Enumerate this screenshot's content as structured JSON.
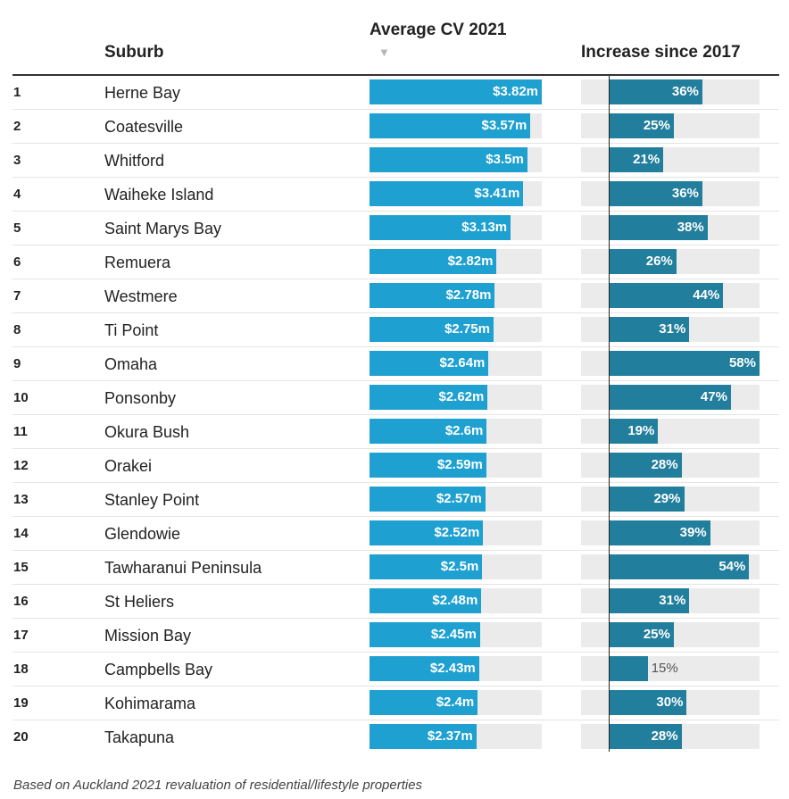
{
  "chart_data": {
    "type": "table",
    "columns": {
      "suburb": "Suburb",
      "cv": "Average CV 2021",
      "increase": "Increase since 2017"
    },
    "sort_indicator": "▼",
    "cv_axis_max": 3.82,
    "increase_axis_max": 58,
    "rows": [
      {
        "rank": "1",
        "suburb": "Herne Bay",
        "cv": 3.82,
        "cv_label": "$3.82m",
        "increase": 36,
        "increase_label": "36%"
      },
      {
        "rank": "2",
        "suburb": "Coatesville",
        "cv": 3.57,
        "cv_label": "$3.57m",
        "increase": 25,
        "increase_label": "25%"
      },
      {
        "rank": "3",
        "suburb": "Whitford",
        "cv": 3.5,
        "cv_label": "$3.5m",
        "increase": 21,
        "increase_label": "21%"
      },
      {
        "rank": "4",
        "suburb": "Waiheke Island",
        "cv": 3.41,
        "cv_label": "$3.41m",
        "increase": 36,
        "increase_label": "36%"
      },
      {
        "rank": "5",
        "suburb": "Saint Marys Bay",
        "cv": 3.13,
        "cv_label": "$3.13m",
        "increase": 38,
        "increase_label": "38%"
      },
      {
        "rank": "6",
        "suburb": "Remuera",
        "cv": 2.82,
        "cv_label": "$2.82m",
        "increase": 26,
        "increase_label": "26%"
      },
      {
        "rank": "7",
        "suburb": "Westmere",
        "cv": 2.78,
        "cv_label": "$2.78m",
        "increase": 44,
        "increase_label": "44%"
      },
      {
        "rank": "8",
        "suburb": "Ti Point",
        "cv": 2.75,
        "cv_label": "$2.75m",
        "increase": 31,
        "increase_label": "31%"
      },
      {
        "rank": "9",
        "suburb": "Omaha",
        "cv": 2.64,
        "cv_label": "$2.64m",
        "increase": 58,
        "increase_label": "58%"
      },
      {
        "rank": "10",
        "suburb": "Ponsonby",
        "cv": 2.62,
        "cv_label": "$2.62m",
        "increase": 47,
        "increase_label": "47%"
      },
      {
        "rank": "11",
        "suburb": "Okura Bush",
        "cv": 2.6,
        "cv_label": "$2.6m",
        "increase": 19,
        "increase_label": "19%"
      },
      {
        "rank": "12",
        "suburb": "Orakei",
        "cv": 2.59,
        "cv_label": "$2.59m",
        "increase": 28,
        "increase_label": "28%"
      },
      {
        "rank": "13",
        "suburb": "Stanley Point",
        "cv": 2.57,
        "cv_label": "$2.57m",
        "increase": 29,
        "increase_label": "29%"
      },
      {
        "rank": "14",
        "suburb": "Glendowie",
        "cv": 2.52,
        "cv_label": "$2.52m",
        "increase": 39,
        "increase_label": "39%"
      },
      {
        "rank": "15",
        "suburb": "Tawharanui Peninsula",
        "cv": 2.5,
        "cv_label": "$2.5m",
        "increase": 54,
        "increase_label": "54%"
      },
      {
        "rank": "16",
        "suburb": "St Heliers",
        "cv": 2.48,
        "cv_label": "$2.48m",
        "increase": 31,
        "increase_label": "31%"
      },
      {
        "rank": "17",
        "suburb": "Mission Bay",
        "cv": 2.45,
        "cv_label": "$2.45m",
        "increase": 25,
        "increase_label": "25%"
      },
      {
        "rank": "18",
        "suburb": "Campbells Bay",
        "cv": 2.43,
        "cv_label": "$2.43m",
        "increase": 15,
        "increase_label": "15%"
      },
      {
        "rank": "19",
        "suburb": "Kohimarama",
        "cv": 2.4,
        "cv_label": "$2.4m",
        "increase": 30,
        "increase_label": "30%"
      },
      {
        "rank": "20",
        "suburb": "Takapuna",
        "cv": 2.37,
        "cv_label": "$2.37m",
        "increase": 28,
        "increase_label": "28%"
      }
    ],
    "colors": {
      "cv_bar": "#1ea0d1",
      "increase_bar": "#217e9c",
      "track": "#ebebeb"
    },
    "footnote": "Based on Auckland 2021 revaluation of residential/lifestyle properties"
  }
}
